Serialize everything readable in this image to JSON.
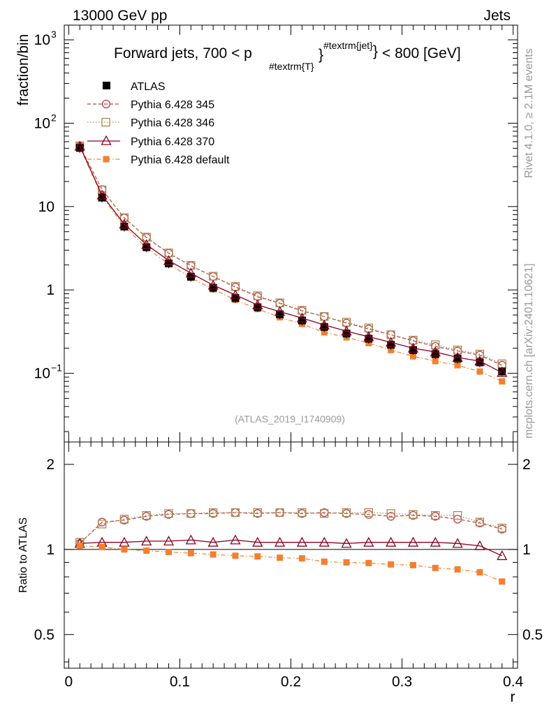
{
  "header": {
    "process": "13000 GeV pp",
    "category": "Jets",
    "side_top": "Rivet 4.1.0, ≥ 2.1M events",
    "side_bottom": "mcplots.cern.ch [arXiv:2401.10621]",
    "analysis_id": "(ATLAS_2019_I1740909)"
  },
  "colors": {
    "atlas": "#000000",
    "py345": "#c0404a",
    "py346": "#a88a4e",
    "py370": "#8b0020",
    "pydefault": "#f28030"
  },
  "chart_data": [
    {
      "type": "line",
      "panel": "main",
      "title": {
        "prefix": "Forward jets, 700 < p",
        "subscript": "#textrm{T}",
        "superscript": "#textrm{jet}",
        "suffix": "< 800 [GeV]"
      },
      "xlabel": "r",
      "ylabel": "fraction/bin",
      "yscale": "log",
      "xlim": [
        -0.004,
        0.404
      ],
      "ylim": [
        0.015,
        1500
      ],
      "y_ticks": [
        {
          "value": 1000,
          "base": "10",
          "exp": "3"
        },
        {
          "value": 100,
          "base": "10",
          "exp": "2"
        },
        {
          "value": 10,
          "base": "10",
          "exp": ""
        },
        {
          "value": 1,
          "base": "1",
          "exp": ""
        },
        {
          "value": 0.1,
          "base": "10",
          "exp": "−1"
        }
      ],
      "x": [
        0.01,
        0.03,
        0.05,
        0.07,
        0.09,
        0.11,
        0.13,
        0.15,
        0.17,
        0.19,
        0.21,
        0.23,
        0.25,
        0.27,
        0.29,
        0.31,
        0.33,
        0.35,
        0.37,
        0.39
      ],
      "series": [
        {
          "key": "atlas",
          "name": "ATLAS",
          "values": [
            50.5,
            12.8,
            5.75,
            3.25,
            2.08,
            1.44,
            1.06,
            0.8,
            0.62,
            0.51,
            0.43,
            0.36,
            0.3,
            0.26,
            0.22,
            0.19,
            0.17,
            0.15,
            0.135,
            0.105
          ]
        },
        {
          "key": "py345",
          "name": "Pythia 6.428 345",
          "values": [
            53.0,
            16.0,
            7.3,
            4.25,
            2.75,
            1.95,
            1.45,
            1.08,
            0.83,
            0.69,
            0.56,
            0.48,
            0.4,
            0.34,
            0.29,
            0.245,
            0.21,
            0.185,
            0.165,
            0.125
          ]
        },
        {
          "key": "py346",
          "name": "Pythia 6.428 346",
          "values": [
            53.5,
            15.8,
            7.35,
            4.3,
            2.78,
            1.97,
            1.46,
            1.1,
            0.85,
            0.7,
            0.57,
            0.48,
            0.41,
            0.35,
            0.29,
            0.25,
            0.22,
            0.19,
            0.17,
            0.13
          ]
        },
        {
          "key": "py370",
          "name": "Pythia 6.428 370",
          "values": [
            53.0,
            13.7,
            6.15,
            3.5,
            2.25,
            1.59,
            1.14,
            0.87,
            0.66,
            0.55,
            0.46,
            0.38,
            0.32,
            0.275,
            0.235,
            0.2,
            0.18,
            0.155,
            0.14,
            0.102
          ]
        },
        {
          "key": "pydefault",
          "name": "Pythia 6.428 default",
          "values": [
            52.0,
            13.2,
            5.75,
            3.2,
            2.05,
            1.4,
            1.02,
            0.76,
            0.59,
            0.47,
            0.39,
            0.31,
            0.27,
            0.23,
            0.19,
            0.16,
            0.14,
            0.125,
            0.105,
            0.08
          ]
        }
      ]
    },
    {
      "type": "line",
      "panel": "ratio",
      "xlabel": "r",
      "ylabel": "Ratio to ATLAS",
      "yscale": "log",
      "xlim": [
        -0.004,
        0.404
      ],
      "ylim": [
        0.38,
        2.4
      ],
      "x_ticks": [
        0,
        0.1,
        0.2,
        0.3,
        0.4
      ],
      "x_tick_labels": [
        "0",
        "0.1",
        "0.2",
        "0.3",
        "0.4"
      ],
      "y_ticks": [
        0.5,
        1,
        2
      ],
      "y_tick_labels": [
        "0.5",
        "1",
        "2"
      ],
      "x": [
        0.01,
        0.03,
        0.05,
        0.07,
        0.09,
        0.11,
        0.13,
        0.15,
        0.17,
        0.19,
        0.21,
        0.23,
        0.25,
        0.27,
        0.29,
        0.31,
        0.33,
        0.35,
        0.37,
        0.39
      ],
      "series": [
        {
          "key": "py345",
          "name": "Pythia 6.428 345",
          "values": [
            1.05,
            1.25,
            1.27,
            1.31,
            1.33,
            1.34,
            1.34,
            1.35,
            1.34,
            1.35,
            1.34,
            1.35,
            1.34,
            1.33,
            1.31,
            1.32,
            1.31,
            1.28,
            1.24,
            1.18
          ]
        },
        {
          "key": "py346",
          "name": "Pythia 6.428 346",
          "values": [
            1.06,
            1.23,
            1.28,
            1.32,
            1.34,
            1.34,
            1.35,
            1.35,
            1.35,
            1.35,
            1.35,
            1.34,
            1.35,
            1.35,
            1.34,
            1.33,
            1.32,
            1.32,
            1.25,
            1.19
          ]
        },
        {
          "key": "py370",
          "name": "Pythia 6.428 370",
          "values": [
            1.05,
            1.06,
            1.06,
            1.07,
            1.07,
            1.08,
            1.06,
            1.08,
            1.06,
            1.06,
            1.06,
            1.06,
            1.05,
            1.06,
            1.06,
            1.06,
            1.06,
            1.05,
            1.03,
            0.95
          ]
        },
        {
          "key": "pydefault",
          "name": "Pythia 6.428 default",
          "values": [
            1.03,
            1.02,
            1.0,
            0.99,
            0.98,
            0.97,
            0.96,
            0.95,
            0.945,
            0.935,
            0.93,
            0.905,
            0.9,
            0.895,
            0.885,
            0.88,
            0.86,
            0.85,
            0.83,
            0.77
          ]
        }
      ]
    }
  ]
}
